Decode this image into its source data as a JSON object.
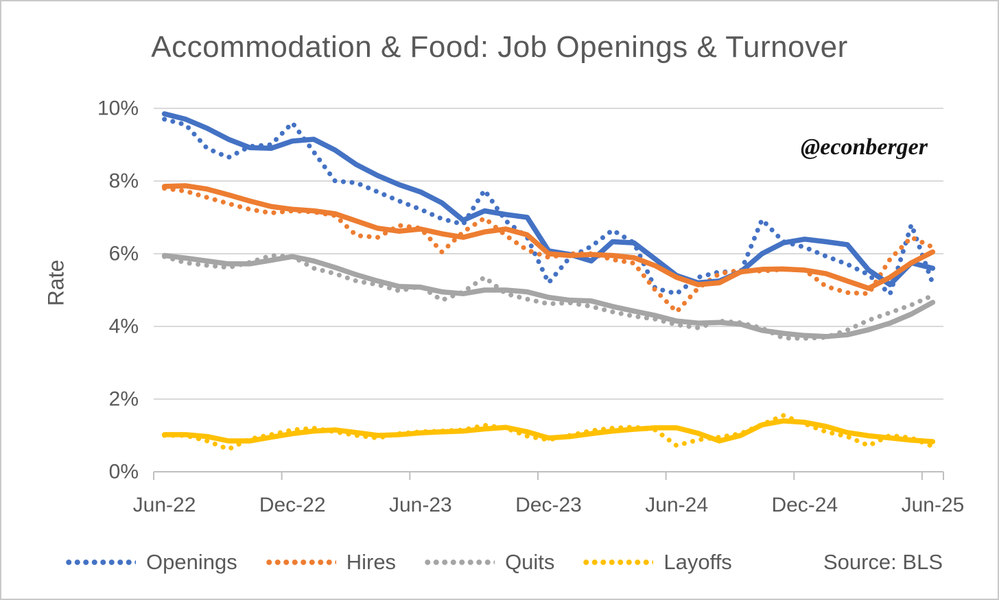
{
  "chart_data": {
    "type": "line",
    "title": "Accommodation & Food: Job Openings & Turnover",
    "watermark": "@econberger",
    "source": "Source: BLS",
    "ylabel": "Rate",
    "ylim": [
      0,
      10
    ],
    "y_tick_labels": [
      "0%",
      "2%",
      "4%",
      "6%",
      "8%",
      "10%"
    ],
    "x_tick_labels": [
      "Jun-22",
      "Dec-22",
      "Jun-23",
      "Dec-23",
      "Jun-24",
      "Dec-24",
      "Jun-25"
    ],
    "grid": "horizontal-only",
    "legend_position": "bottom",
    "line_styles": {
      "monthly": "dotted",
      "smoothed": "solid"
    },
    "months": [
      "Jun-22",
      "Jul-22",
      "Aug-22",
      "Sep-22",
      "Oct-22",
      "Nov-22",
      "Dec-22",
      "Jan-23",
      "Feb-23",
      "Mar-23",
      "Apr-23",
      "May-23",
      "Jun-23",
      "Jul-23",
      "Aug-23",
      "Sep-23",
      "Oct-23",
      "Nov-23",
      "Dec-23",
      "Jan-24",
      "Feb-24",
      "Mar-24",
      "Apr-24",
      "May-24",
      "Jun-24",
      "Jul-24",
      "Aug-24",
      "Sep-24",
      "Oct-24",
      "Nov-24",
      "Dec-24",
      "Jan-25",
      "Feb-25",
      "Mar-25",
      "Apr-25",
      "May-25",
      "Jun-25"
    ],
    "series": [
      {
        "name": "Openings",
        "color": "#4472C4",
        "monthly": [
          9.7,
          9.55,
          8.9,
          8.65,
          8.95,
          9.0,
          9.6,
          8.8,
          8.0,
          7.95,
          7.7,
          7.45,
          7.22,
          6.96,
          6.81,
          7.75,
          6.9,
          6.45,
          5.2,
          5.9,
          6.2,
          6.65,
          6.3,
          5.05,
          4.9,
          5.35,
          5.5,
          5.5,
          6.94,
          6.33,
          6.18,
          5.93,
          5.71,
          5.42,
          4.89,
          6.8,
          5.18
        ],
        "smoothed": [
          9.85,
          9.7,
          9.45,
          9.15,
          8.92,
          8.9,
          9.1,
          9.15,
          8.85,
          8.45,
          8.15,
          7.9,
          7.7,
          7.4,
          6.92,
          7.18,
          7.08,
          7.0,
          6.08,
          5.98,
          5.8,
          6.33,
          6.3,
          5.85,
          5.4,
          5.2,
          5.25,
          5.5,
          6.0,
          6.3,
          6.4,
          6.33,
          6.25,
          5.55,
          5.15,
          5.75,
          5.6
        ]
      },
      {
        "name": "Hires",
        "color": "#ED7D31",
        "monthly": [
          7.8,
          7.72,
          7.55,
          7.38,
          7.22,
          7.12,
          7.18,
          7.15,
          7.05,
          6.5,
          6.45,
          6.78,
          6.7,
          6.05,
          6.6,
          6.98,
          6.5,
          6.1,
          5.9,
          6.0,
          6.0,
          5.84,
          5.74,
          5.0,
          4.4,
          5.05,
          5.45,
          5.55,
          5.52,
          5.57,
          5.55,
          5.1,
          4.93,
          4.9,
          5.85,
          6.45,
          6.18
        ],
        "smoothed": [
          7.85,
          7.87,
          7.78,
          7.62,
          7.45,
          7.3,
          7.22,
          7.18,
          7.1,
          6.9,
          6.7,
          6.62,
          6.68,
          6.55,
          6.45,
          6.6,
          6.68,
          6.52,
          6.0,
          5.95,
          5.98,
          5.95,
          5.89,
          5.67,
          5.35,
          5.15,
          5.2,
          5.5,
          5.57,
          5.58,
          5.55,
          5.45,
          5.25,
          5.05,
          5.35,
          5.75,
          6.05
        ]
      },
      {
        "name": "Quits",
        "color": "#A5A5A5",
        "monthly": [
          5.92,
          5.75,
          5.68,
          5.62,
          5.76,
          5.95,
          5.92,
          5.6,
          5.45,
          5.25,
          5.15,
          4.98,
          5.1,
          4.72,
          4.95,
          5.35,
          4.9,
          4.75,
          4.62,
          4.65,
          4.55,
          4.4,
          4.28,
          4.2,
          4.05,
          3.96,
          4.15,
          4.1,
          3.95,
          3.68,
          3.67,
          3.7,
          3.9,
          4.17,
          4.38,
          4.59,
          4.85
        ],
        "smoothed": [
          5.95,
          5.88,
          5.8,
          5.72,
          5.72,
          5.82,
          5.92,
          5.8,
          5.62,
          5.42,
          5.25,
          5.1,
          5.08,
          4.95,
          4.9,
          5.0,
          5.0,
          4.95,
          4.8,
          4.72,
          4.7,
          4.55,
          4.42,
          4.3,
          4.15,
          4.09,
          4.11,
          4.06,
          3.89,
          3.81,
          3.75,
          3.72,
          3.77,
          3.91,
          4.09,
          4.34,
          4.66
        ]
      },
      {
        "name": "Layoffs",
        "color": "#FFC000",
        "monthly": [
          1.0,
          1.0,
          0.85,
          0.62,
          0.9,
          1.02,
          1.15,
          1.2,
          1.1,
          1.0,
          0.93,
          1.05,
          1.1,
          1.12,
          1.15,
          1.28,
          1.2,
          0.98,
          0.88,
          1.0,
          1.13,
          1.2,
          1.23,
          1.15,
          0.72,
          0.88,
          0.95,
          1.05,
          1.3,
          1.55,
          1.32,
          1.1,
          0.97,
          0.72,
          1.0,
          0.93,
          0.7
        ],
        "smoothed": [
          1.02,
          1.02,
          0.97,
          0.85,
          0.85,
          0.95,
          1.05,
          1.12,
          1.15,
          1.08,
          1.0,
          1.02,
          1.07,
          1.1,
          1.12,
          1.18,
          1.22,
          1.1,
          0.93,
          0.97,
          1.05,
          1.12,
          1.17,
          1.21,
          1.21,
          1.06,
          0.85,
          1.0,
          1.29,
          1.4,
          1.36,
          1.25,
          1.08,
          0.99,
          0.93,
          0.87,
          0.83
        ]
      }
    ]
  }
}
